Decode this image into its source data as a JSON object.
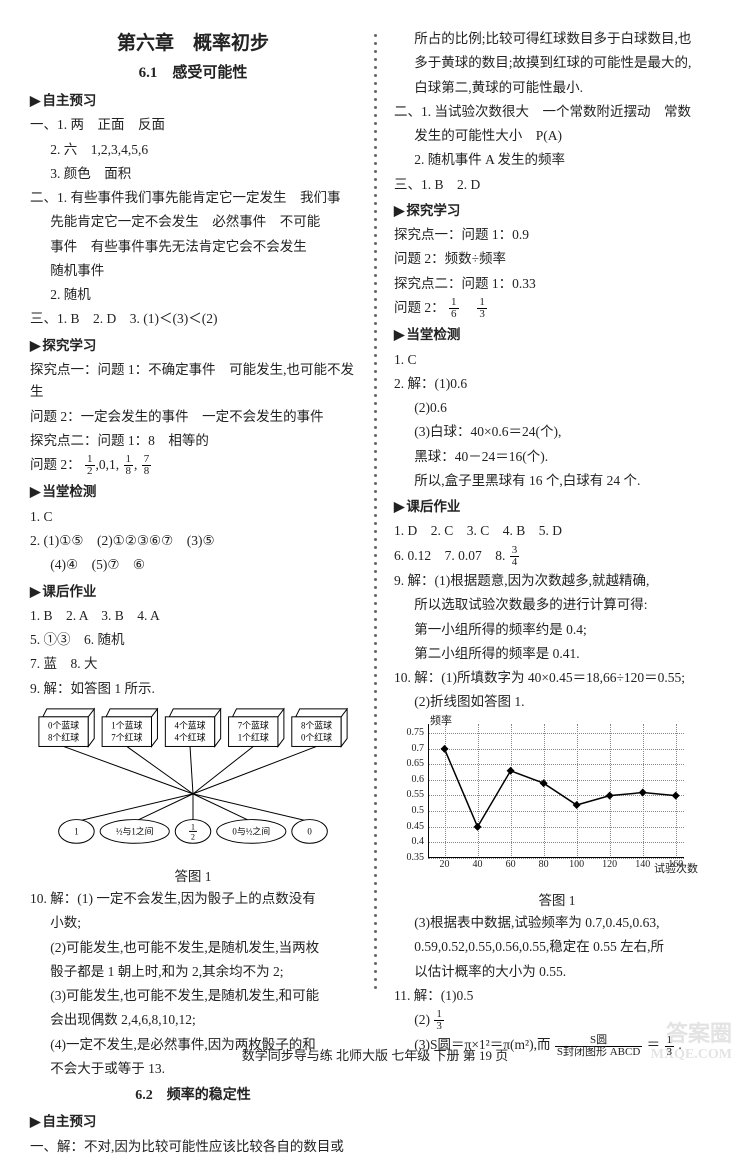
{
  "chapter_title": "第六章　概率初步",
  "section_6_1_title": "6.1　感受可能性",
  "section_6_2_title": "6.2　频率的稳定性",
  "heading_preview": "自主预习",
  "heading_explore": "探究学习",
  "heading_check": "当堂检测",
  "heading_homework": "课后作业",
  "left": {
    "preview": {
      "l1": "一、1. 两　正面　反面",
      "l2": "2. 六　1,2,3,4,5,6",
      "l3": "3. 颜色　面积",
      "l4": "二、1. 有些事件我们事先能肯定它一定发生　我们事",
      "l4b": "先能肯定它一定不会发生　必然事件　不可能",
      "l4c": "事件　有些事件事先无法肯定它会不会发生",
      "l4d": "随机事件",
      "l5": "2. 随机",
      "l6": "三、1. B　2. D　3. (1)＜(3)＜(2)"
    },
    "explore": {
      "p1": "探究点一：问题 1：不确定事件　可能发生,也可能不发生",
      "p2": "问题 2：一定会发生的事件　一定不会发生的事件",
      "p3": "探究点二：问题 1：8　相等的",
      "p4a": "问题 2：",
      "p4_vals": [
        "1/2",
        "0",
        "1",
        "1/8",
        "7/8"
      ]
    },
    "check": {
      "l1": "1. C",
      "l2": "2. (1)①⑤　(2)①②③⑥⑦　(3)⑤",
      "l3": "(4)④　(5)⑦　⑥"
    },
    "hw": {
      "l1": "1. B　2. A　3. B　4. A",
      "l2": "5. ①③　6. 随机",
      "l3": "7. 蓝　8. 大",
      "l4": "9. 解：如答图 1 所示."
    },
    "diagram": {
      "boxes": [
        {
          "top": "0个蓝球",
          "bot": "8个红球"
        },
        {
          "top": "1个蓝球",
          "bot": "7个红球"
        },
        {
          "top": "4个蓝球",
          "bot": "4个红球"
        },
        {
          "top": "7个蓝球",
          "bot": "1个红球"
        },
        {
          "top": "8个蓝球",
          "bot": "0个红球"
        }
      ],
      "ovals": [
        "1",
        "1/2与1之间",
        "1/2",
        "0与1/2之间",
        "0"
      ],
      "caption": "答图 1"
    },
    "q10": {
      "l1": "10. 解：(1) 一定不会发生,因为骰子上的点数没有",
      "l1b": "小数;",
      "l2": "(2)可能发生,也可能不发生,是随机发生,当两枚",
      "l2b": "骰子都是 1 朝上时,和为 2,其余均不为 2;",
      "l3": "(3)可能发生,也可能不发生,是随机发生,和可能",
      "l3b": "会出现偶数 2,4,6,8,10,12;",
      "l4": "(4)一定不发生,是必然事件,因为两枚骰子的和",
      "l4b": "不会大于或等于 13."
    },
    "s62_preview": "一、解：不对,因为比较可能性应该比较各自的数目或"
  },
  "right": {
    "cont": {
      "l1": "所占的比例;比较可得红球数目多于白球数目,也",
      "l2": "多于黄球的数目;故摸到红球的可能性是最大的,",
      "l3": "白球第二,黄球的可能性最小."
    },
    "preview2": {
      "l1": "二、1. 当试验次数很大　一个常数附近摆动　常数",
      "l2": "发生的可能性大小　P(A)",
      "l3": "2. 随机事件 A 发生的频率",
      "l4": "三、1. B　2. D"
    },
    "explore": {
      "p1": "探究点一：问题 1：0.9",
      "p2": "问题 2：频数÷频率",
      "p3": "探究点二：问题 1：0.33",
      "p4a": "问题 2：",
      "p4_vals": [
        "1/6",
        "1/3"
      ]
    },
    "check": {
      "l1": "1. C",
      "l2": "2. 解：(1)0.6",
      "l3": "(2)0.6",
      "l4": "(3)白球：40×0.6＝24(个),",
      "l5": "黑球：40－24＝16(个).",
      "l6": "所以,盒子里黑球有 16 个,白球有 24 个."
    },
    "hw": {
      "l1": "1. D　2. C　3. C　4. B　5. D",
      "l2a": "6. 0.12　7. 0.07　8. ",
      "l2_frac": "3/4",
      "l3": "9. 解：(1)根据题意,因为次数越多,就越精确,",
      "l4": "所以选取试验次数最多的进行计算可得:",
      "l5": "第一小组所得的频率约是 0.4;",
      "l6": "第二小组所得的频率是 0.41.",
      "l7": "10. 解：(1)所填数字为 40×0.45＝18,66÷120＝0.55;",
      "l8": "(2)折线图如答图 1."
    },
    "chart": {
      "ylabel": "频率",
      "xlabel": "试验次数",
      "yticks": [
        "0.75",
        "0.7",
        "0.65",
        "0.6",
        "0.55",
        "0.5",
        "0.45",
        "0.4",
        "0.35"
      ],
      "ytick_values": [
        0.75,
        0.7,
        0.65,
        0.6,
        0.55,
        0.5,
        0.45,
        0.4,
        0.35
      ],
      "xticks": [
        "20",
        "40",
        "60",
        "80",
        "100",
        "120",
        "140",
        "160"
      ],
      "xtick_values": [
        20,
        40,
        60,
        80,
        100,
        120,
        140,
        160
      ],
      "ylim": [
        0.35,
        0.78
      ],
      "xlim": [
        10,
        165
      ],
      "points": [
        {
          "x": 20,
          "y": 0.7
        },
        {
          "x": 40,
          "y": 0.45
        },
        {
          "x": 60,
          "y": 0.63
        },
        {
          "x": 80,
          "y": 0.59
        },
        {
          "x": 100,
          "y": 0.52
        },
        {
          "x": 120,
          "y": 0.55
        },
        {
          "x": 140,
          "y": 0.56
        },
        {
          "x": 160,
          "y": 0.55
        }
      ],
      "line_color": "#000000",
      "marker_color": "#000000",
      "marker_size": 4,
      "grid_color": "#888888",
      "caption": "答图 1"
    },
    "after_chart": {
      "l1": "(3)根据表中数据,试验频率为 0.7,0.45,0.63,",
      "l2": "0.59,0.52,0.55,0.56,0.55,稳定在 0.55 左右,所",
      "l3": "以估计概率的大小为 0.55.",
      "l4": "11. 解：(1)0.5",
      "l5a": "(2)",
      "l5_frac": "1/3",
      "l6a": "(3)S圆＝π×1²＝π(m²),而 ",
      "l6_frac_top": "S圆",
      "l6_frac_bot": "S封闭图形 ABCD",
      "l6b": "＝",
      "l6_frac2": "1/3",
      "l6c": "."
    }
  },
  "footer": "数学同步导与练 北师大版 七年级 下册 第 19 页",
  "watermark": {
    "l1": "答案圈",
    "l2": "MXQE.COM"
  }
}
